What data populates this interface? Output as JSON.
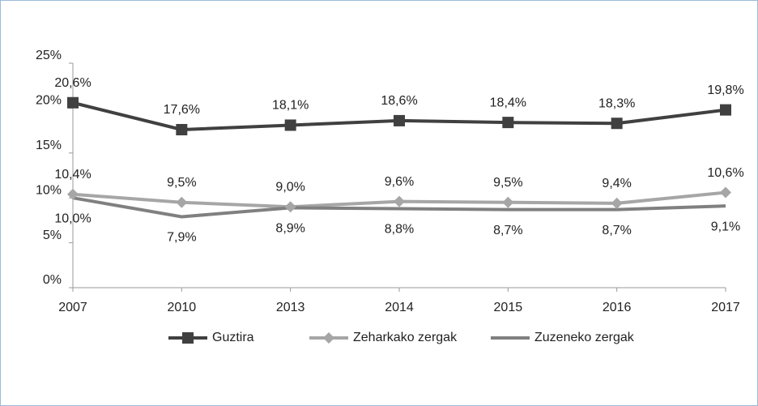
{
  "chart_data": {
    "type": "line",
    "categories": [
      "2007",
      "2010",
      "2013",
      "2014",
      "2015",
      "2016",
      "2017"
    ],
    "series": [
      {
        "name": "Guztira",
        "color": "#404040",
        "marker": "square",
        "values": [
          20.6,
          17.6,
          18.1,
          18.6,
          18.4,
          18.3,
          19.8
        ],
        "value_labels": [
          "20,6%",
          "17,6%",
          "18,1%",
          "18,6%",
          "18,4%",
          "18,3%",
          "19,8%"
        ]
      },
      {
        "name": "Zeharkako zergak",
        "color": "#a6a6a6",
        "marker": "diamond",
        "values": [
          10.4,
          9.5,
          9.0,
          9.6,
          9.5,
          9.4,
          10.6
        ],
        "value_labels": [
          "10,4%",
          "9,5%",
          "9,0%",
          "9,6%",
          "9,5%",
          "9,4%",
          "10,6%"
        ]
      },
      {
        "name": "Zuzeneko zergak",
        "color": "#808080",
        "marker": "none",
        "values": [
          10.0,
          7.9,
          8.9,
          8.8,
          8.7,
          8.7,
          9.1
        ],
        "value_labels": [
          "10,0%",
          "7,9%",
          "8,9%",
          "8,8%",
          "8,7%",
          "8,7%",
          "9,1%"
        ]
      }
    ],
    "ylim": [
      0,
      25
    ],
    "yticks": [
      {
        "value": 0,
        "label": "0%"
      },
      {
        "value": 5,
        "label": "5%"
      },
      {
        "value": 10,
        "label": "10%"
      },
      {
        "value": 15,
        "label": "15%"
      },
      {
        "value": 20,
        "label": "20%"
      },
      {
        "value": 25,
        "label": "25%"
      }
    ],
    "legend": "bottom",
    "grid": false
  }
}
